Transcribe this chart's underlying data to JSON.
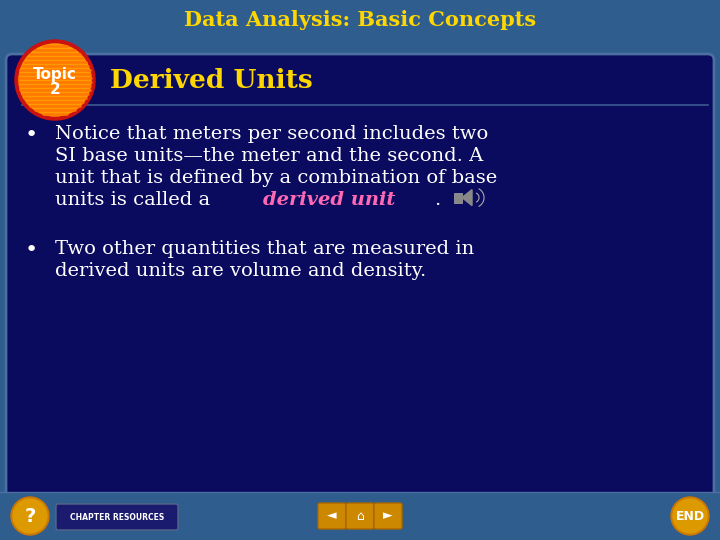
{
  "title": "Data Analysis: Basic Concepts",
  "title_color": "#FFD700",
  "subtitle": "Derived Units",
  "subtitle_color": "#FFD700",
  "outer_bg_color": "#2E5D8E",
  "panel_bg_color": "#0A0A5E",
  "panel_border_color": "#4a6fa0",
  "bullet_color": "#FFFFFF",
  "highlight_color": "#FF69B4",
  "topic_circle_outer": "#CC1111",
  "topic_circle_inner": "#FF9900",
  "topic_stripe_color": "#FF7700",
  "topic_text_color": "#FFFFFF",
  "footer_bg": "#2E5D8E",
  "footer_btn_color": "#1a1a6e",
  "nav_btn_color": "#CC8800",
  "end_btn_color": "#CC7700",
  "q_btn_color": "#CC7700",
  "footer_text": "CHAPTER RESOURCES",
  "end_text": "END",
  "topic_text_line1": "Topic",
  "topic_text_line2": "2",
  "bullet1_prefix": "units is called a ",
  "bullet1_highlight": "derived unit",
  "bullet1_end": ".",
  "fontsize_title": 15,
  "fontsize_subtitle": 19,
  "fontsize_body": 14,
  "fontsize_bullet": 16
}
